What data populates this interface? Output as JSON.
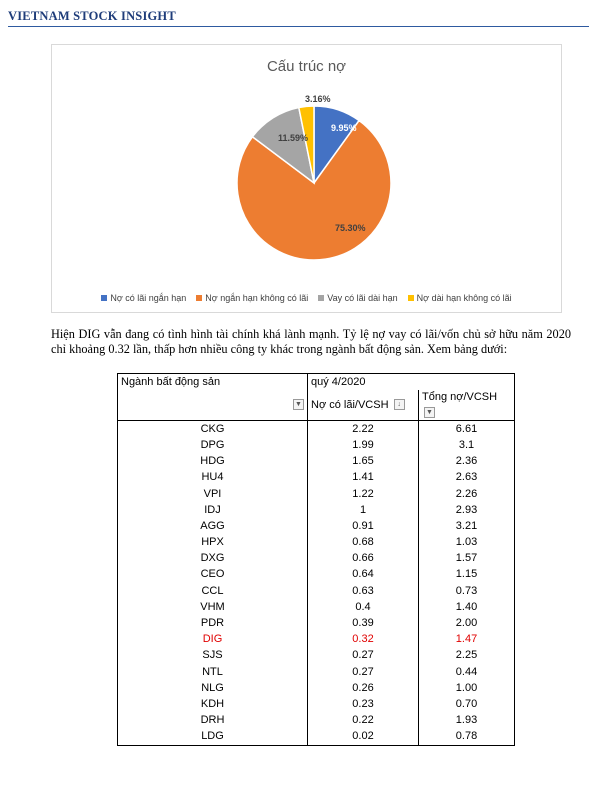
{
  "header": {
    "title": "VIETNAM STOCK INSIGHT"
  },
  "chart_data": {
    "type": "pie",
    "title": "Cấu trúc nợ",
    "labels": [
      "Nợ có lãi ngắn hạn",
      "Nợ ngắn hạn không có lãi",
      "Vay  có lãi dài hạn",
      "Nợ dài hạn không có lãi"
    ],
    "values": [
      9.95,
      75.3,
      11.59,
      3.16
    ],
    "value_labels": [
      "9.95%",
      "75.30%",
      "11.59%",
      "3.16%"
    ],
    "colors": [
      "#4472c4",
      "#ed7d31",
      "#a5a5a5",
      "#ffc000"
    ],
    "legend_position": "bottom"
  },
  "paragraph": "Hiện DIG vẫn đang có tình hình tài chính khá lành mạnh. Tỷ lệ nợ vay có lãi/vốn chủ sở hữu năm 2020 chỉ khoảng 0.32 lần, thấp hơn nhiều công ty khác trong ngành bất động sản. Xem bảng dưới:",
  "table": {
    "header1": {
      "col1": "Ngành bất động sản",
      "col2": "quý 4/2020",
      "col3": ""
    },
    "header2": {
      "col1": "",
      "col2": "Nợ có lãi/VCSH",
      "col3": "Tổng nợ/VCSH"
    },
    "rows": [
      {
        "ticker": "CKG",
        "debt_interest": "2.22",
        "total_debt": "6.61"
      },
      {
        "ticker": "DPG",
        "debt_interest": "1.99",
        "total_debt": "3.1"
      },
      {
        "ticker": "HDG",
        "debt_interest": "1.65",
        "total_debt": "2.36"
      },
      {
        "ticker": "HU4",
        "debt_interest": "1.41",
        "total_debt": "2.63"
      },
      {
        "ticker": "VPI",
        "debt_interest": "1.22",
        "total_debt": "2.26"
      },
      {
        "ticker": "IDJ",
        "debt_interest": "1",
        "total_debt": "2.93"
      },
      {
        "ticker": "AGG",
        "debt_interest": "0.91",
        "total_debt": "3.21"
      },
      {
        "ticker": "HPX",
        "debt_interest": "0.68",
        "total_debt": "1.03"
      },
      {
        "ticker": "DXG",
        "debt_interest": "0.66",
        "total_debt": "1.57"
      },
      {
        "ticker": "CEO",
        "debt_interest": "0.64",
        "total_debt": "1.15"
      },
      {
        "ticker": "CCL",
        "debt_interest": "0.63",
        "total_debt": "0.73"
      },
      {
        "ticker": "VHM",
        "debt_interest": "0.4",
        "total_debt": "1.40"
      },
      {
        "ticker": "PDR",
        "debt_interest": "0.39",
        "total_debt": "2.00"
      },
      {
        "ticker": "DIG",
        "debt_interest": "0.32",
        "total_debt": "1.47",
        "highlight": true
      },
      {
        "ticker": "SJS",
        "debt_interest": "0.27",
        "total_debt": "2.25"
      },
      {
        "ticker": "NTL",
        "debt_interest": "0.27",
        "total_debt": "0.44"
      },
      {
        "ticker": "NLG",
        "debt_interest": "0.26",
        "total_debt": "1.00"
      },
      {
        "ticker": "KDH",
        "debt_interest": "0.23",
        "total_debt": "0.70"
      },
      {
        "ticker": "DRH",
        "debt_interest": "0.22",
        "total_debt": "1.93"
      },
      {
        "ticker": "LDG",
        "debt_interest": "0.02",
        "total_debt": "0.78"
      }
    ]
  }
}
